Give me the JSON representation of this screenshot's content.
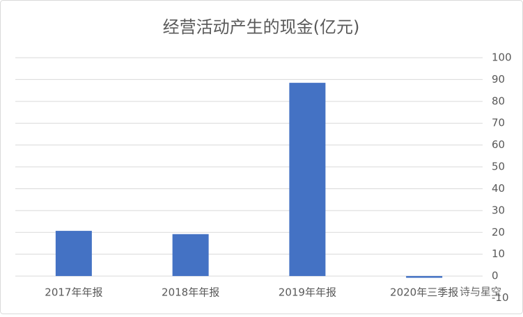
{
  "chart_data": {
    "type": "bar",
    "title": "经营活动产生的现金(亿元)",
    "categories": [
      "2017年年报",
      "2018年年报",
      "2019年年报",
      "2020年三季报"
    ],
    "values": [
      20.7,
      19.2,
      88.5,
      -0.8
    ],
    "color": "#4472c4",
    "ylim": [
      -10,
      100
    ],
    "yticks": [
      -10,
      0,
      10,
      20,
      30,
      40,
      50,
      60,
      70,
      80,
      90,
      100
    ],
    "grid": true,
    "watermark": "诗与星空"
  }
}
